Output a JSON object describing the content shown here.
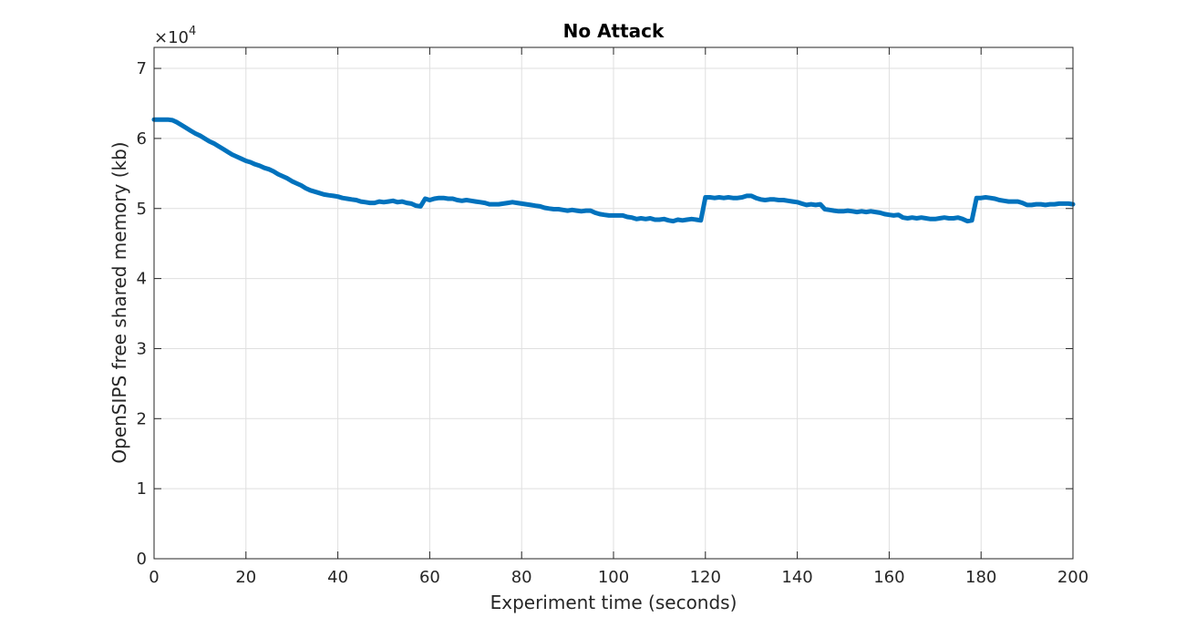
{
  "chart_data": {
    "type": "line",
    "title": "No Attack",
    "xlabel": "Experiment time (seconds)",
    "ylabel": "OpenSIPS free shared memory (kb)",
    "y_exponent_label": "×10",
    "y_exponent_power": "4",
    "xlim": [
      0,
      200
    ],
    "ylim": [
      0,
      7.3
    ],
    "y_multiplier": 10000,
    "x_ticks": [
      "0",
      "20",
      "40",
      "60",
      "80",
      "100",
      "120",
      "140",
      "160",
      "180",
      "200"
    ],
    "y_ticks": [
      "0",
      "1",
      "2",
      "3",
      "4",
      "5",
      "6",
      "7"
    ],
    "grid": true,
    "line_color": "#0072BD",
    "series": [
      {
        "x": [
          0,
          1,
          2,
          3,
          4,
          5,
          6,
          7,
          8,
          9,
          10,
          11,
          12,
          13,
          14,
          15,
          16,
          17,
          18,
          19,
          20,
          21,
          22,
          23,
          24,
          25,
          26,
          27,
          28,
          29,
          30,
          31,
          32,
          33,
          34,
          35,
          36,
          37,
          38,
          39,
          40,
          41,
          42,
          43,
          44,
          45,
          46,
          47,
          48,
          49,
          50,
          51,
          52,
          53,
          54,
          55,
          56,
          57,
          58,
          59,
          60,
          61,
          62,
          63,
          64,
          65,
          66,
          67,
          68,
          69,
          70,
          71,
          72,
          73,
          74,
          75,
          76,
          77,
          78,
          79,
          80,
          81,
          82,
          83,
          84,
          85,
          86,
          87,
          88,
          89,
          90,
          91,
          92,
          93,
          94,
          95,
          96,
          97,
          98,
          99,
          100,
          101,
          102,
          103,
          104,
          105,
          106,
          107,
          108,
          109,
          110,
          111,
          112,
          113,
          114,
          115,
          116,
          117,
          118,
          119,
          120,
          121,
          122,
          123,
          124,
          125,
          126,
          127,
          128,
          129,
          130,
          131,
          132,
          133,
          134,
          135,
          136,
          137,
          138,
          139,
          140,
          141,
          142,
          143,
          144,
          145,
          146,
          147,
          148,
          149,
          150,
          151,
          152,
          153,
          154,
          155,
          156,
          157,
          158,
          159,
          160,
          161,
          162,
          163,
          164,
          165,
          166,
          167,
          168,
          169,
          170,
          171,
          172,
          173,
          174,
          175,
          176,
          177,
          178,
          179,
          180,
          181,
          182,
          183,
          184,
          185,
          186,
          187,
          188,
          189,
          190,
          191,
          192,
          193,
          194,
          195,
          196,
          197,
          198,
          199,
          200
        ],
        "y": [
          6.27,
          6.27,
          6.27,
          6.27,
          6.26,
          6.23,
          6.19,
          6.15,
          6.11,
          6.07,
          6.04,
          6.0,
          5.96,
          5.93,
          5.89,
          5.85,
          5.81,
          5.77,
          5.74,
          5.71,
          5.68,
          5.66,
          5.63,
          5.61,
          5.58,
          5.56,
          5.53,
          5.49,
          5.46,
          5.43,
          5.39,
          5.36,
          5.33,
          5.29,
          5.26,
          5.24,
          5.22,
          5.2,
          5.19,
          5.18,
          5.17,
          5.15,
          5.14,
          5.13,
          5.12,
          5.1,
          5.09,
          5.08,
          5.08,
          5.1,
          5.09,
          5.1,
          5.11,
          5.09,
          5.1,
          5.08,
          5.07,
          5.04,
          5.03,
          5.14,
          5.12,
          5.14,
          5.15,
          5.15,
          5.14,
          5.14,
          5.12,
          5.11,
          5.12,
          5.11,
          5.1,
          5.09,
          5.08,
          5.06,
          5.06,
          5.06,
          5.07,
          5.08,
          5.09,
          5.08,
          5.07,
          5.06,
          5.05,
          5.04,
          5.03,
          5.01,
          5.0,
          4.99,
          4.99,
          4.98,
          4.97,
          4.98,
          4.97,
          4.96,
          4.97,
          4.97,
          4.94,
          4.92,
          4.91,
          4.9,
          4.9,
          4.9,
          4.9,
          4.88,
          4.87,
          4.85,
          4.86,
          4.85,
          4.86,
          4.84,
          4.84,
          4.85,
          4.83,
          4.82,
          4.84,
          4.83,
          4.84,
          4.85,
          4.84,
          4.83,
          5.16,
          5.16,
          5.15,
          5.16,
          5.15,
          5.16,
          5.15,
          5.15,
          5.16,
          5.18,
          5.18,
          5.15,
          5.13,
          5.12,
          5.13,
          5.13,
          5.12,
          5.12,
          5.11,
          5.1,
          5.09,
          5.07,
          5.05,
          5.06,
          5.05,
          5.06,
          4.99,
          4.98,
          4.97,
          4.96,
          4.96,
          4.97,
          4.96,
          4.95,
          4.96,
          4.95,
          4.96,
          4.95,
          4.94,
          4.92,
          4.91,
          4.9,
          4.91,
          4.87,
          4.86,
          4.87,
          4.86,
          4.87,
          4.86,
          4.85,
          4.85,
          4.86,
          4.87,
          4.86,
          4.86,
          4.87,
          4.85,
          4.82,
          4.83,
          5.15,
          5.15,
          5.16,
          5.15,
          5.14,
          5.12,
          5.11,
          5.1,
          5.1,
          5.1,
          5.08,
          5.05,
          5.05,
          5.06,
          5.06,
          5.05,
          5.06,
          5.06,
          5.07,
          5.07,
          5.07,
          5.06
        ]
      }
    ]
  }
}
